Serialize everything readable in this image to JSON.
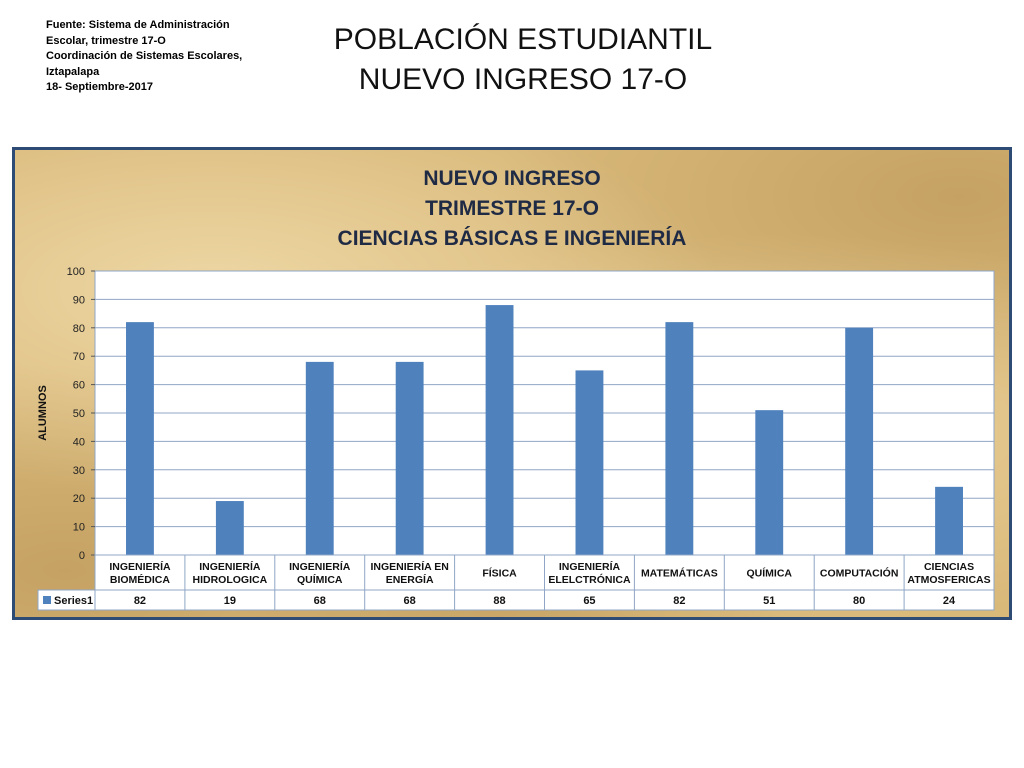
{
  "source": {
    "lines": [
      "Fuente: Sistema de Administración",
      "Escolar, trimestre 17-O",
      "Coordinación de Sistemas Escolares,",
      "Iztapalapa",
      "18- Septiembre-2017"
    ]
  },
  "slide": {
    "title_line1": "POBLACIÓN ESTUDIANTIL",
    "title_line2": "NUEVO INGRESO 17-O"
  },
  "chart_data": {
    "type": "bar",
    "title": [
      "NUEVO INGRESO",
      "TRIMESTRE 17-O",
      "CIENCIAS BÁSICAS E INGENIERÍA"
    ],
    "xlabel": "",
    "ylabel": "ALUMNOS",
    "ylim": [
      0,
      100
    ],
    "yticks": [
      0,
      10,
      20,
      30,
      40,
      50,
      60,
      70,
      80,
      90,
      100
    ],
    "grid": true,
    "categories": [
      [
        "INGENIERÍA",
        "BIOMÉDICA"
      ],
      [
        "INGENIERÍA",
        "HIDROLOGICA"
      ],
      [
        "INGENIERÍA",
        "QUÍMICA"
      ],
      [
        "INGENIERÍA EN",
        "ENERGÍA"
      ],
      [
        "FÍSICA"
      ],
      [
        "INGENIERÍA",
        "ELELCTRÓNICA"
      ],
      [
        "MATEMÁTICAS"
      ],
      [
        "QUÍMICA"
      ],
      [
        "COMPUTACIÓN"
      ],
      [
        "CIENCIAS",
        "ATMOSFERICAS"
      ]
    ],
    "series": [
      {
        "name": "Series1",
        "values": [
          82,
          19,
          68,
          68,
          88,
          65,
          82,
          51,
          80,
          24
        ]
      }
    ],
    "data_table": true,
    "colors": {
      "bar": "#4f81bd",
      "grid": "#8fa6c6",
      "plot_bg": "#ffffff",
      "frame": "#2e4b76",
      "table_border": "#8fa6c6"
    }
  }
}
